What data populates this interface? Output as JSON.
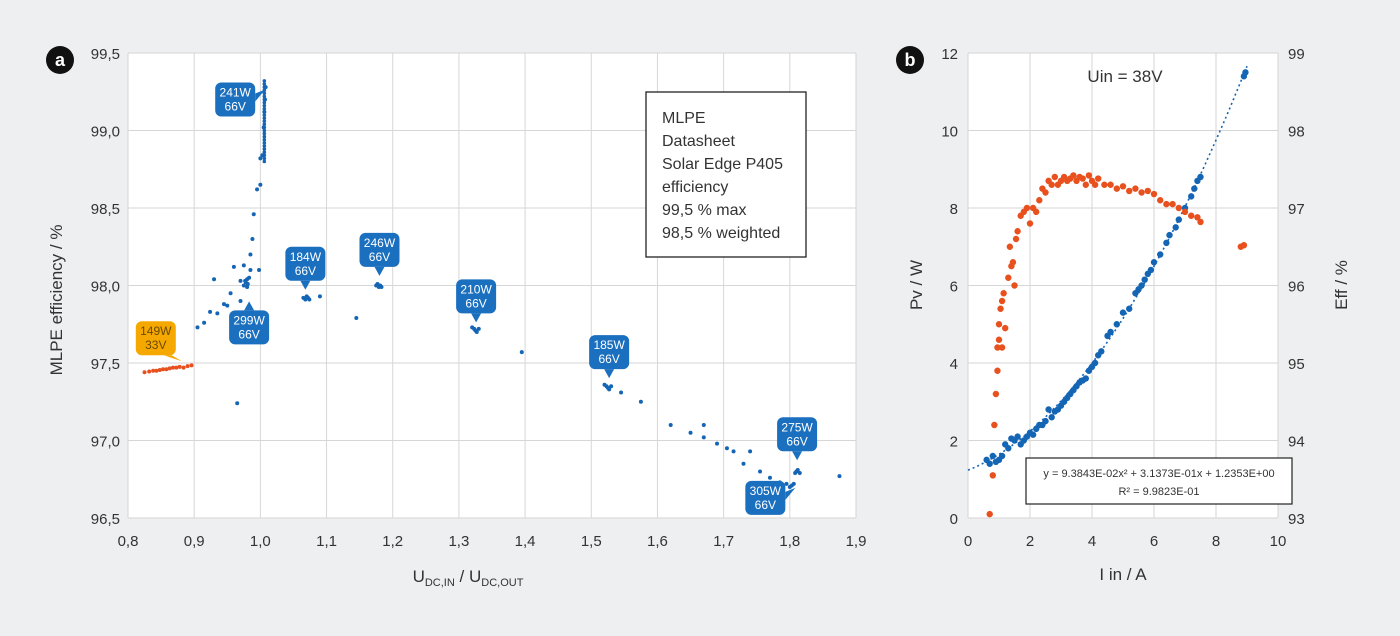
{
  "chart_data": [
    {
      "panel_label": "a",
      "type": "scatter",
      "xlabel": "U",
      "xlabel_sub1": "DC,IN",
      "xlabel_mid": " / U",
      "xlabel_sub2": "DC,OUT",
      "ylabel": "MLPE efficiency / %",
      "xlim": [
        0.8,
        1.9
      ],
      "ylim": [
        96.5,
        99.5
      ],
      "xticks": [
        "0,8",
        "0,9",
        "1,0",
        "1,1",
        "1,2",
        "1,3",
        "1,4",
        "1,5",
        "1,6",
        "1,7",
        "1,8",
        "1,9"
      ],
      "yticks": [
        "96,5",
        "97,0",
        "97,5",
        "98,0",
        "98,5",
        "99,0",
        "99,5"
      ],
      "grid": true,
      "info_box": [
        "MLPE",
        "Datasheet",
        "Solar Edge P405",
        "efficiency",
        "99,5 % max",
        "98,5 % weighted"
      ],
      "series": [
        {
          "color": "#e8501e",
          "points": [
            [
              0.825,
              97.44
            ],
            [
              0.832,
              97.445
            ],
            [
              0.838,
              97.45
            ],
            [
              0.843,
              97.45
            ],
            [
              0.848,
              97.455
            ],
            [
              0.853,
              97.46
            ],
            [
              0.858,
              97.46
            ],
            [
              0.863,
              97.465
            ],
            [
              0.868,
              97.47
            ],
            [
              0.873,
              97.47
            ],
            [
              0.878,
              97.475
            ],
            [
              0.884,
              97.47
            ],
            [
              0.89,
              97.48
            ],
            [
              0.896,
              97.485
            ]
          ]
        },
        {
          "color": "#1565b5",
          "points": [
            [
              0.905,
              97.73
            ],
            [
              0.915,
              97.76
            ],
            [
              0.924,
              97.83
            ],
            [
              0.935,
              97.82
            ],
            [
              0.945,
              97.88
            ],
            [
              0.955,
              97.95
            ],
            [
              0.96,
              98.12
            ],
            [
              0.965,
              97.24
            ],
            [
              0.97,
              98.03
            ],
            [
              0.97,
              97.9
            ],
            [
              0.975,
              98.0
            ],
            [
              0.977,
              98.03
            ],
            [
              0.978,
              98.02
            ],
            [
              0.98,
              98.04
            ],
            [
              0.981,
              98.01
            ],
            [
              0.983,
              98.05
            ],
            [
              0.98,
              97.99
            ],
            [
              0.985,
              98.1
            ],
            [
              0.988,
              98.3
            ],
            [
              0.99,
              98.46
            ],
            [
              0.995,
              98.62
            ],
            [
              0.998,
              98.1
            ],
            [
              1.0,
              98.82
            ],
            [
              1.003,
              98.84
            ],
            [
              1.005,
              99.02
            ],
            [
              1.006,
              99.12
            ],
            [
              1.007,
              99.2
            ],
            [
              1.008,
              99.28
            ],
            [
              1.0,
              98.65
            ],
            [
              0.985,
              98.2
            ],
            [
              0.975,
              98.13
            ],
            [
              0.95,
              97.87
            ],
            [
              0.93,
              98.04
            ],
            [
              1.065,
              97.92
            ],
            [
              1.068,
              97.91
            ],
            [
              1.07,
              97.93
            ],
            [
              1.072,
              97.92
            ],
            [
              1.074,
              97.91
            ],
            [
              1.09,
              97.93
            ],
            [
              1.145,
              97.79
            ],
            [
              1.175,
              98.0
            ],
            [
              1.177,
              98.01
            ],
            [
              1.179,
              97.99
            ],
            [
              1.181,
              98.0
            ],
            [
              1.183,
              97.99
            ],
            [
              1.32,
              97.73
            ],
            [
              1.323,
              97.72
            ],
            [
              1.325,
              97.71
            ],
            [
              1.327,
              97.7
            ],
            [
              1.33,
              97.72
            ],
            [
              1.395,
              97.57
            ],
            [
              1.52,
              97.36
            ],
            [
              1.523,
              97.35
            ],
            [
              1.525,
              97.34
            ],
            [
              1.527,
              97.33
            ],
            [
              1.53,
              97.35
            ],
            [
              1.545,
              97.31
            ],
            [
              1.575,
              97.25
            ],
            [
              1.62,
              97.1
            ],
            [
              1.65,
              97.05
            ],
            [
              1.67,
              97.1
            ],
            [
              1.67,
              97.02
            ],
            [
              1.69,
              96.98
            ],
            [
              1.705,
              96.95
            ],
            [
              1.715,
              96.93
            ],
            [
              1.73,
              96.85
            ],
            [
              1.74,
              96.93
            ],
            [
              1.755,
              96.8
            ],
            [
              1.77,
              96.76
            ],
            [
              1.785,
              96.73
            ],
            [
              1.795,
              96.72
            ],
            [
              1.8,
              96.7
            ],
            [
              1.803,
              96.71
            ],
            [
              1.806,
              96.72
            ],
            [
              1.808,
              96.79
            ],
            [
              1.81,
              96.8
            ],
            [
              1.812,
              96.81
            ],
            [
              1.815,
              96.79
            ],
            [
              1.875,
              96.77
            ]
          ]
        }
      ],
      "callouts": [
        {
          "line1": "241W",
          "line2": "66V",
          "x": 0.962,
          "y": 99.2,
          "color": "#1b6fbf",
          "tail": "right"
        },
        {
          "line1": "184W",
          "line2": "66V",
          "x": 1.068,
          "y": 98.14,
          "color": "#1b6fbf",
          "tail": "down"
        },
        {
          "line1": "246W",
          "line2": "66V",
          "x": 1.18,
          "y": 98.23,
          "color": "#1b6fbf",
          "tail": "down"
        },
        {
          "line1": "299W",
          "line2": "66V",
          "x": 0.983,
          "y": 97.73,
          "color": "#1b6fbf",
          "tail": "up"
        },
        {
          "line1": "149W",
          "line2": "33V",
          "x": 0.842,
          "y": 97.66,
          "color": "#f5a800",
          "tail": "downright"
        },
        {
          "line1": "210W",
          "line2": "66V",
          "x": 1.326,
          "y": 97.93,
          "color": "#1b6fbf",
          "tail": "down"
        },
        {
          "line1": "185W",
          "line2": "66V",
          "x": 1.527,
          "y": 97.57,
          "color": "#1b6fbf",
          "tail": "down"
        },
        {
          "line1": "275W",
          "line2": "66V",
          "x": 1.811,
          "y": 97.04,
          "color": "#1b6fbf",
          "tail": "down"
        },
        {
          "line1": "305W",
          "line2": "66V",
          "x": 1.763,
          "y": 96.63,
          "color": "#1b6fbf",
          "tail": "right"
        }
      ]
    },
    {
      "panel_label": "b",
      "type": "scatter",
      "annotation": "Uin = 38V",
      "xlabel": "I in / A",
      "ylabel_left": "Pv / W",
      "ylabel_right": "Eff / %",
      "xlim": [
        0,
        10
      ],
      "ylim_left": [
        0,
        12
      ],
      "ylim_right": [
        93,
        99
      ],
      "xticks": [
        "0",
        "2",
        "4",
        "6",
        "8",
        "10"
      ],
      "yticks_left": [
        "0",
        "2",
        "4",
        "6",
        "8",
        "10",
        "12"
      ],
      "yticks_right": [
        "93",
        "94",
        "95",
        "96",
        "97",
        "98",
        "99"
      ],
      "grid": true,
      "fit_line1": "y = 9.3843E-02x² + 3.1373E-01x + 1.2353E+00",
      "fit_line2": "R² = 9.9823E-01",
      "fit": {
        "a": 0.093843,
        "b": 0.31373,
        "c": 1.2353
      },
      "series": [
        {
          "name_axis": "left",
          "color": "#1565b5",
          "points": [
            [
              0.6,
              1.5
            ],
            [
              0.7,
              1.4
            ],
            [
              0.8,
              1.6
            ],
            [
              0.9,
              1.45
            ],
            [
              1.0,
              1.5
            ],
            [
              1.1,
              1.6
            ],
            [
              1.2,
              1.9
            ],
            [
              1.3,
              1.8
            ],
            [
              1.4,
              2.05
            ],
            [
              1.5,
              2.0
            ],
            [
              1.6,
              2.1
            ],
            [
              1.7,
              1.9
            ],
            [
              1.8,
              2.0
            ],
            [
              1.9,
              2.1
            ],
            [
              2.0,
              2.2
            ],
            [
              2.1,
              2.15
            ],
            [
              2.2,
              2.3
            ],
            [
              2.3,
              2.4
            ],
            [
              2.4,
              2.4
            ],
            [
              2.5,
              2.5
            ],
            [
              2.6,
              2.8
            ],
            [
              2.7,
              2.6
            ],
            [
              2.8,
              2.75
            ],
            [
              2.9,
              2.8
            ],
            [
              3.0,
              2.9
            ],
            [
              3.1,
              3.0
            ],
            [
              3.2,
              3.1
            ],
            [
              3.3,
              3.2
            ],
            [
              3.4,
              3.3
            ],
            [
              3.5,
              3.4
            ],
            [
              3.6,
              3.5
            ],
            [
              3.7,
              3.55
            ],
            [
              3.8,
              3.6
            ],
            [
              3.9,
              3.8
            ],
            [
              4.0,
              3.9
            ],
            [
              4.1,
              4.0
            ],
            [
              4.2,
              4.2
            ],
            [
              4.3,
              4.3
            ],
            [
              4.5,
              4.7
            ],
            [
              4.6,
              4.8
            ],
            [
              4.8,
              5.0
            ],
            [
              5.0,
              5.3
            ],
            [
              5.2,
              5.4
            ],
            [
              5.4,
              5.8
            ],
            [
              5.5,
              5.9
            ],
            [
              5.6,
              6.0
            ],
            [
              5.7,
              6.15
            ],
            [
              5.8,
              6.3
            ],
            [
              5.9,
              6.4
            ],
            [
              6.0,
              6.6
            ],
            [
              6.2,
              6.8
            ],
            [
              6.4,
              7.1
            ],
            [
              6.5,
              7.3
            ],
            [
              6.7,
              7.5
            ],
            [
              6.8,
              7.7
            ],
            [
              7.0,
              8.0
            ],
            [
              7.2,
              8.3
            ],
            [
              7.3,
              8.5
            ],
            [
              7.4,
              8.7
            ],
            [
              7.5,
              8.8
            ],
            [
              8.9,
              11.4
            ],
            [
              8.95,
              11.5
            ]
          ]
        },
        {
          "name_axis": "right",
          "color": "#e8501e",
          "points": [
            [
              0.7,
              93.05
            ],
            [
              0.8,
              93.55
            ],
            [
              0.85,
              94.2
            ],
            [
              0.9,
              94.6
            ],
            [
              0.95,
              94.9
            ],
            [
              0.95,
              95.2
            ],
            [
              1.0,
              95.5
            ],
            [
              1.0,
              95.3
            ],
            [
              1.05,
              95.7
            ],
            [
              1.1,
              95.2
            ],
            [
              1.1,
              95.8
            ],
            [
              1.15,
              95.9
            ],
            [
              1.2,
              95.45
            ],
            [
              1.3,
              96.1
            ],
            [
              1.35,
              96.5
            ],
            [
              1.4,
              96.25
            ],
            [
              1.45,
              96.3
            ],
            [
              1.5,
              96.0
            ],
            [
              1.55,
              96.6
            ],
            [
              1.6,
              96.7
            ],
            [
              1.7,
              96.9
            ],
            [
              1.8,
              96.95
            ],
            [
              1.9,
              97.0
            ],
            [
              2.0,
              96.8
            ],
            [
              2.1,
              97.0
            ],
            [
              2.2,
              96.95
            ],
            [
              2.3,
              97.1
            ],
            [
              2.4,
              97.25
            ],
            [
              2.5,
              97.2
            ],
            [
              2.6,
              97.35
            ],
            [
              2.7,
              97.3
            ],
            [
              2.8,
              97.4
            ],
            [
              2.9,
              97.3
            ],
            [
              3.0,
              97.35
            ],
            [
              3.1,
              97.4
            ],
            [
              3.2,
              97.35
            ],
            [
              3.3,
              97.38
            ],
            [
              3.4,
              97.42
            ],
            [
              3.5,
              97.35
            ],
            [
              3.6,
              97.4
            ],
            [
              3.7,
              97.38
            ],
            [
              3.8,
              97.3
            ],
            [
              3.9,
              97.42
            ],
            [
              4.0,
              97.35
            ],
            [
              4.1,
              97.3
            ],
            [
              4.2,
              97.38
            ],
            [
              4.4,
              97.3
            ],
            [
              4.6,
              97.3
            ],
            [
              4.8,
              97.25
            ],
            [
              5.0,
              97.28
            ],
            [
              5.2,
              97.22
            ],
            [
              5.4,
              97.25
            ],
            [
              5.6,
              97.2
            ],
            [
              5.8,
              97.22
            ],
            [
              6.0,
              97.18
            ],
            [
              6.2,
              97.1
            ],
            [
              6.4,
              97.05
            ],
            [
              6.6,
              97.05
            ],
            [
              6.8,
              97.0
            ],
            [
              7.0,
              96.95
            ],
            [
              7.2,
              96.9
            ],
            [
              7.4,
              96.88
            ],
            [
              7.5,
              96.82
            ],
            [
              8.8,
              96.5
            ],
            [
              8.9,
              96.52
            ]
          ]
        }
      ]
    }
  ]
}
